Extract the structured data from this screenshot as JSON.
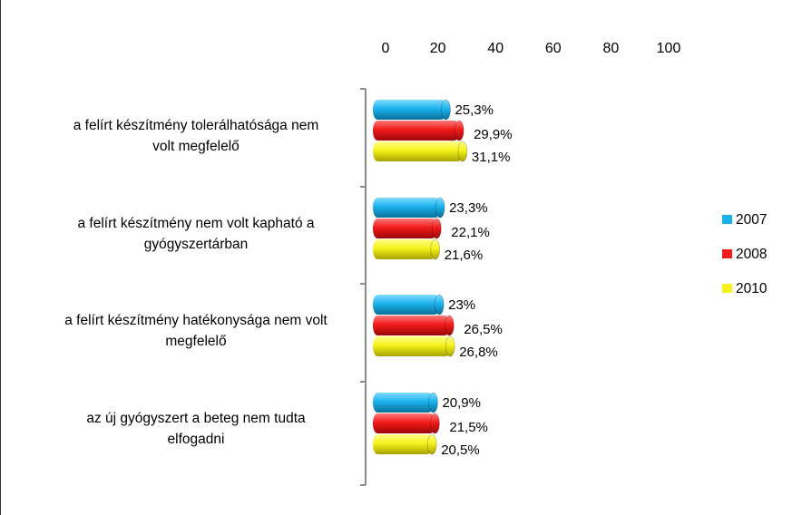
{
  "chart_data": {
    "type": "bar",
    "orientation": "horizontal",
    "xlim": [
      0,
      100
    ],
    "x_ticks": [
      "0",
      "20",
      "40",
      "60",
      "80",
      "100"
    ],
    "categories": [
      [
        "a felírt készítmény tolerálhatósága nem",
        "volt megfelelő"
      ],
      [
        "a felírt készítmény nem volt kapható a",
        "gyógyszertárban"
      ],
      [
        "a felírt készítmény hatékonysága nem volt",
        "megfelelő"
      ],
      [
        "az új gyógyszert a beteg nem tudta",
        "elfogadni"
      ]
    ],
    "series": [
      {
        "name": "2007",
        "color": "#1AB2EC",
        "values": [
          25.3,
          23.3,
          23,
          20.9
        ],
        "labels": [
          "25,3%",
          "23,3%",
          "23%",
          "20,9%"
        ]
      },
      {
        "name": "2008",
        "color": "#F21A1A",
        "values": [
          29.9,
          22.1,
          26.5,
          21.5
        ],
        "labels": [
          "29,9%",
          "22,1%",
          "26,5%",
          "21,5%"
        ]
      },
      {
        "name": "2010",
        "color": "#F5F21A",
        "values": [
          31.1,
          21.6,
          26.8,
          20.5
        ],
        "labels": [
          "31,1%",
          "21,6%",
          "26,8%",
          "20,5%"
        ]
      }
    ],
    "legend_position": "right",
    "grid": false
  }
}
